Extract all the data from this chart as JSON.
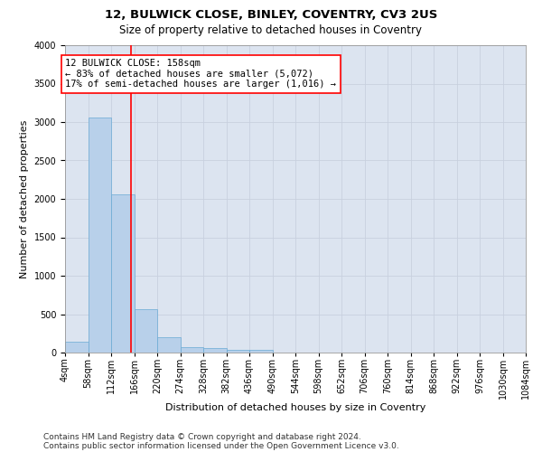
{
  "title": "12, BULWICK CLOSE, BINLEY, COVENTRY, CV3 2US",
  "subtitle": "Size of property relative to detached houses in Coventry",
  "xlabel": "Distribution of detached houses by size in Coventry",
  "ylabel": "Number of detached properties",
  "footnote1": "Contains HM Land Registry data © Crown copyright and database right 2024.",
  "footnote2": "Contains public sector information licensed under the Open Government Licence v3.0.",
  "bin_edges": [
    4,
    58,
    112,
    166,
    220,
    274,
    328,
    382,
    436,
    490,
    544,
    598,
    652,
    706,
    760,
    814,
    868,
    922,
    976,
    1030,
    1084
  ],
  "bin_labels": [
    "4sqm",
    "58sqm",
    "112sqm",
    "166sqm",
    "220sqm",
    "274sqm",
    "328sqm",
    "382sqm",
    "436sqm",
    "490sqm",
    "544sqm",
    "598sqm",
    "652sqm",
    "706sqm",
    "760sqm",
    "814sqm",
    "868sqm",
    "922sqm",
    "976sqm",
    "1030sqm",
    "1084sqm"
  ],
  "bar_heights": [
    140,
    3060,
    2060,
    560,
    200,
    75,
    55,
    40,
    30,
    0,
    0,
    0,
    0,
    0,
    0,
    0,
    0,
    0,
    0,
    0
  ],
  "bar_color": "#b8d0ea",
  "bar_edgecolor": "#6aaad4",
  "property_line_x": 158,
  "property_line_color": "red",
  "annotation_line1": "12 BULWICK CLOSE: 158sqm",
  "annotation_line2": "← 83% of detached houses are smaller (5,072)",
  "annotation_line3": "17% of semi-detached houses are larger (1,016) →",
  "ylim": [
    0,
    4000
  ],
  "yticks": [
    0,
    500,
    1000,
    1500,
    2000,
    2500,
    3000,
    3500,
    4000
  ],
  "grid_color": "#c8d0df",
  "background_color": "#dce4f0",
  "title_fontsize": 9.5,
  "subtitle_fontsize": 8.5,
  "axis_label_fontsize": 8,
  "tick_fontsize": 7,
  "footnote_fontsize": 6.5,
  "annotation_fontsize": 7.5
}
